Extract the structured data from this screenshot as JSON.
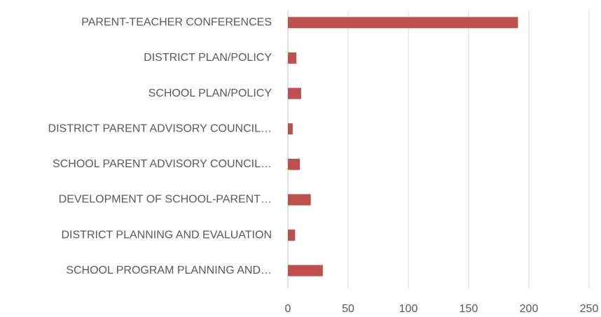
{
  "chart_data": {
    "type": "bar",
    "orientation": "horizontal",
    "categories": [
      "PARENT-TEACHER CONFERENCES",
      "DISTRICT PLAN/POLICY",
      "SCHOOL PLAN/POLICY",
      "DISTRICT PARENT ADVISORY COUNCIL…",
      "SCHOOL PARENT ADVISORY COUNCIL…",
      "DEVELOPMENT OF SCHOOL-PARENT…",
      "DISTRICT PLANNING AND EVALUATION",
      "SCHOOL PROGRAM PLANNING AND…"
    ],
    "values": [
      191,
      7,
      11,
      4,
      10,
      19,
      6,
      29
    ],
    "color": "#c0504d",
    "xlim": [
      0,
      250
    ],
    "xticks": [
      0,
      50,
      100,
      150,
      200,
      250
    ],
    "grid": true
  }
}
